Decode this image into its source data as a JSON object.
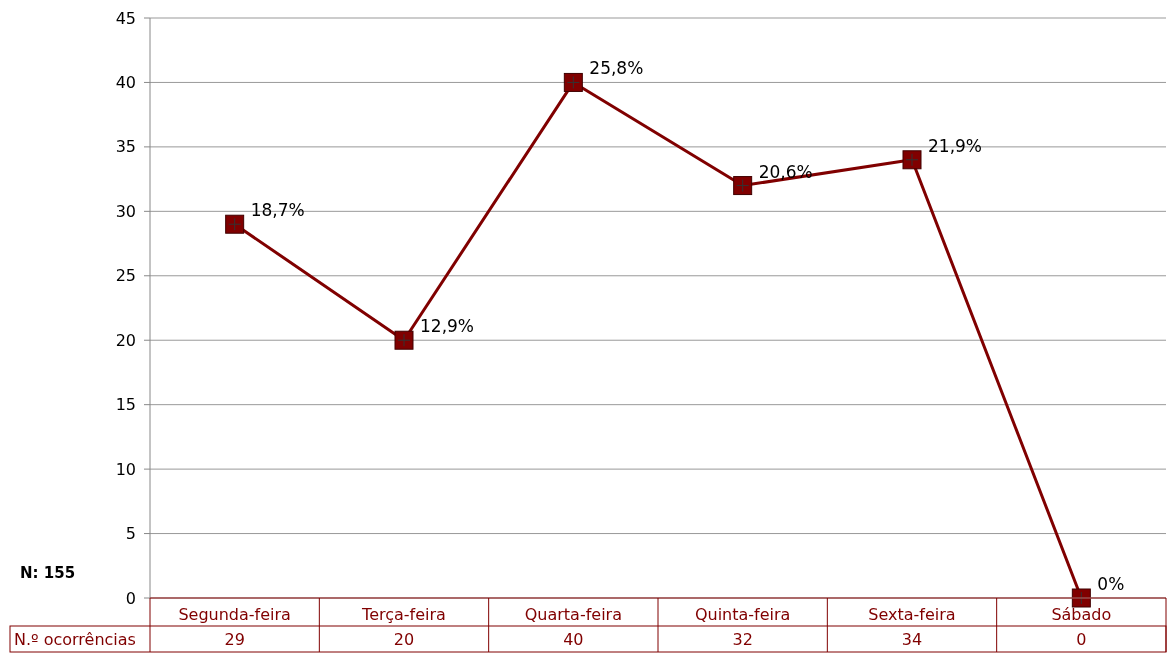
{
  "chart_data": {
    "type": "line",
    "categories": [
      "Segunda-feira",
      "Terça-feira",
      "Quarta-feira",
      "Quinta-feira",
      "Sexta-feira",
      "Sábado"
    ],
    "series": [
      {
        "name": "N.º ocorrências",
        "color": "#800000",
        "values": [
          29,
          20,
          40,
          32,
          34,
          0
        ]
      }
    ],
    "ylim": [
      0,
      45
    ],
    "yticks": [
      0,
      5,
      10,
      15,
      20,
      25,
      30,
      35,
      40,
      45
    ],
    "grid": "y",
    "marker": "square",
    "line_style": "solid",
    "data_labels": true,
    "annotations": [
      "N: 155",
      {
        "text": "18,7%",
        "x": "Segunda-feira",
        "y": 29
      },
      {
        "text": "12,9%",
        "x": "Terça-feira",
        "y": 20
      },
      {
        "text": "25,8%",
        "x": "Quarta-feira",
        "y": 40
      },
      {
        "text": "20,6%",
        "x": "Quinta-feira",
        "y": 32
      },
      {
        "text": "21,9%",
        "x": "Sexta-feira",
        "y": 34
      },
      {
        "text": "0%",
        "x": "Sábado",
        "y": 0
      }
    ]
  }
}
